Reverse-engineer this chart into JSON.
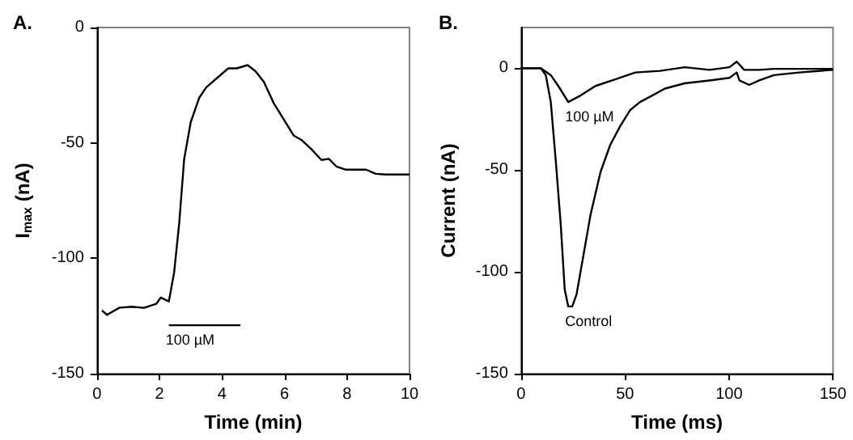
{
  "chart_data": [
    {
      "type": "line",
      "title": "A.",
      "xlabel": "Time (min)",
      "ylabel": "I$_{max}$ (nA)",
      "xlim": [
        0,
        10
      ],
      "xticks": [
        0,
        2,
        4,
        6,
        8,
        10
      ],
      "ylim": [
        -150,
        0
      ],
      "yticks": [
        -150,
        -100,
        -50,
        0
      ],
      "line_style": "solid",
      "series": [
        {
          "color": "#000000",
          "x": [
            0.16,
            0.32,
            0.72,
            1.12,
            1.5,
            1.9,
            2.04,
            2.3,
            2.47,
            2.63,
            2.79,
            3.0,
            3.27,
            3.5,
            3.9,
            4.2,
            4.47,
            4.82,
            5.07,
            5.34,
            5.66,
            5.98,
            6.3,
            6.54,
            6.86,
            7.18,
            7.42,
            7.66,
            7.97,
            8.29,
            8.61,
            8.92,
            9.24,
            10
          ],
          "values": [
            -122.6,
            -124.5,
            -121.4,
            -121,
            -121.5,
            -119.7,
            -117,
            -118.7,
            -106,
            -85,
            -57,
            -41,
            -30.5,
            -25.9,
            -21.2,
            -17.7,
            -17.7,
            -16.3,
            -18.9,
            -23.6,
            -32.9,
            -39.9,
            -46.9,
            -48.7,
            -52.7,
            -57.4,
            -56.9,
            -60.2,
            -61.6,
            -61.6,
            -61.6,
            -63.4,
            -63.7,
            -63.7
          ]
        },
        {
          "name": "100 µM",
          "color": "#000000",
          "x": [
            2.3,
            4.59
          ],
          "values": [
            -129,
            -129
          ]
        }
      ]
    },
    {
      "type": "line",
      "title": "B.",
      "xlabel": "Time (ms)",
      "ylabel": "Current (nA)",
      "xlim": [
        0,
        150
      ],
      "xticks": [
        0,
        50,
        100,
        150
      ],
      "ylim": [
        -150,
        20
      ],
      "yticks": [
        -150,
        -100,
        -50,
        0
      ],
      "line_style": "solid",
      "series": [
        {
          "name": "Control",
          "color": "#000000",
          "x": [
            0,
            9.5,
            11.9,
            14.3,
            16.7,
            19.1,
            21,
            22.7,
            24.6,
            26.7,
            29.8,
            33.4,
            38.2,
            42.9,
            47.7,
            52.5,
            57.2,
            62,
            69.2,
            78.7,
            90.6,
            100.2,
            103.7,
            105,
            109.7,
            114.5,
            121.6,
            133.6,
            150
          ],
          "values": [
            0,
            0,
            -3.4,
            -16.6,
            -45.5,
            -77,
            -108.7,
            -117,
            -117,
            -111,
            -93,
            -72,
            -51,
            -37.6,
            -28.4,
            -20.5,
            -16.6,
            -14,
            -10,
            -7.4,
            -6,
            -4.7,
            -2.1,
            -6,
            -8.2,
            -6,
            -3.4,
            -2.1,
            -0.8
          ]
        },
        {
          "name": "100 µM",
          "color": "#000000",
          "x": [
            0,
            9.5,
            14.3,
            17.9,
            22.7,
            28.6,
            35.8,
            45.3,
            54.9,
            66.8,
            78.7,
            90.6,
            100.2,
            103.7,
            107.3,
            114.5,
            121.6,
            133.6,
            150
          ],
          "values": [
            0,
            0,
            -3.4,
            -8.7,
            -16.6,
            -13.4,
            -8.7,
            -5.5,
            -2.1,
            -1.3,
            0.5,
            -0.8,
            0.5,
            3.2,
            -0.8,
            -0.8,
            -0.3,
            -0.3,
            -0.3
          ]
        }
      ]
    }
  ]
}
